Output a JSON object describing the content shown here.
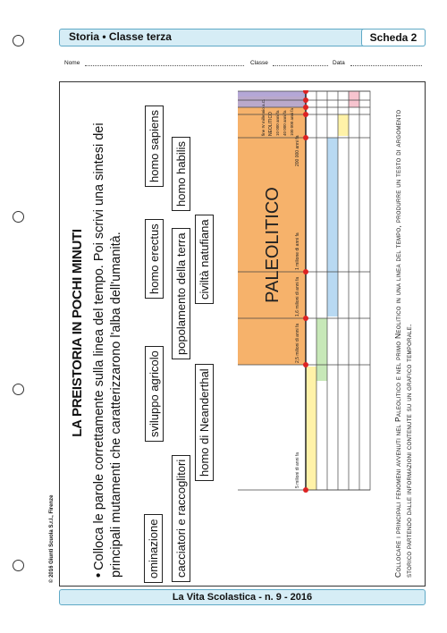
{
  "header": {
    "subject": "Storia • Classe terza",
    "scheda": "Scheda 2"
  },
  "form": {
    "nome": "Nome",
    "classe": "Classe",
    "data": "Data"
  },
  "title": "LA PREISTORIA IN POCHI MINUTI",
  "instructions": "Colloca le parole correttamente sulla linea del tempo. Poi scrivi una sintesi dei principali mutamenti che caratterizzarono l'alba dell'umanità.",
  "words": {
    "ominazione": "ominazione",
    "sviluppo_agricolo": "sviluppo agricolo",
    "homo_erectus": "homo erectus",
    "homo_sapiens": "homo sapiens",
    "cacciatori": "cacciatori e raccoglitori",
    "popolamento": "popolamento della terra",
    "homo_habilis": "homo habilis",
    "neanderthal": "homo di Neanderthal",
    "civilta": "civiltà natufiana"
  },
  "timeline": {
    "period_paleolitico": "PALEOLITICO",
    "period_neolitico": "NEOLITICO",
    "labels": {
      "m5": "5 milioni di anni fa",
      "m25": "2,5 milioni di anni fa",
      "m16": "1,6 milioni di anni fa",
      "m1": "1 milione di anni fa",
      "k200": "200 000 anni fa",
      "k100": "100 000 anni fa",
      "k40": "40 000 anni fa",
      "k10": "10 000 anni fa",
      "ivmill": "fine IV millennio a.C."
    },
    "colors": {
      "paleo": "#f6b26b",
      "neo": "#b4a7d6",
      "yellow": "#fff2a8",
      "green": "#c7e8b8",
      "blue": "#b8d9f2",
      "pink": "#f7c4cf",
      "dot": "#dd2222"
    }
  },
  "bottom_text": "Collocare i principali fenomeni avvenuti nel Paleolitico e nel primo Neolitico in una linea del tempo, produrre un testo di argomento storico partendo dalle informazioni contenute su un grafico temporale.",
  "copyright": "© 2016 Giunti Scuola S.r.l., Firenze",
  "footer": "La Vita Scolastica - n. 9 - 2016"
}
